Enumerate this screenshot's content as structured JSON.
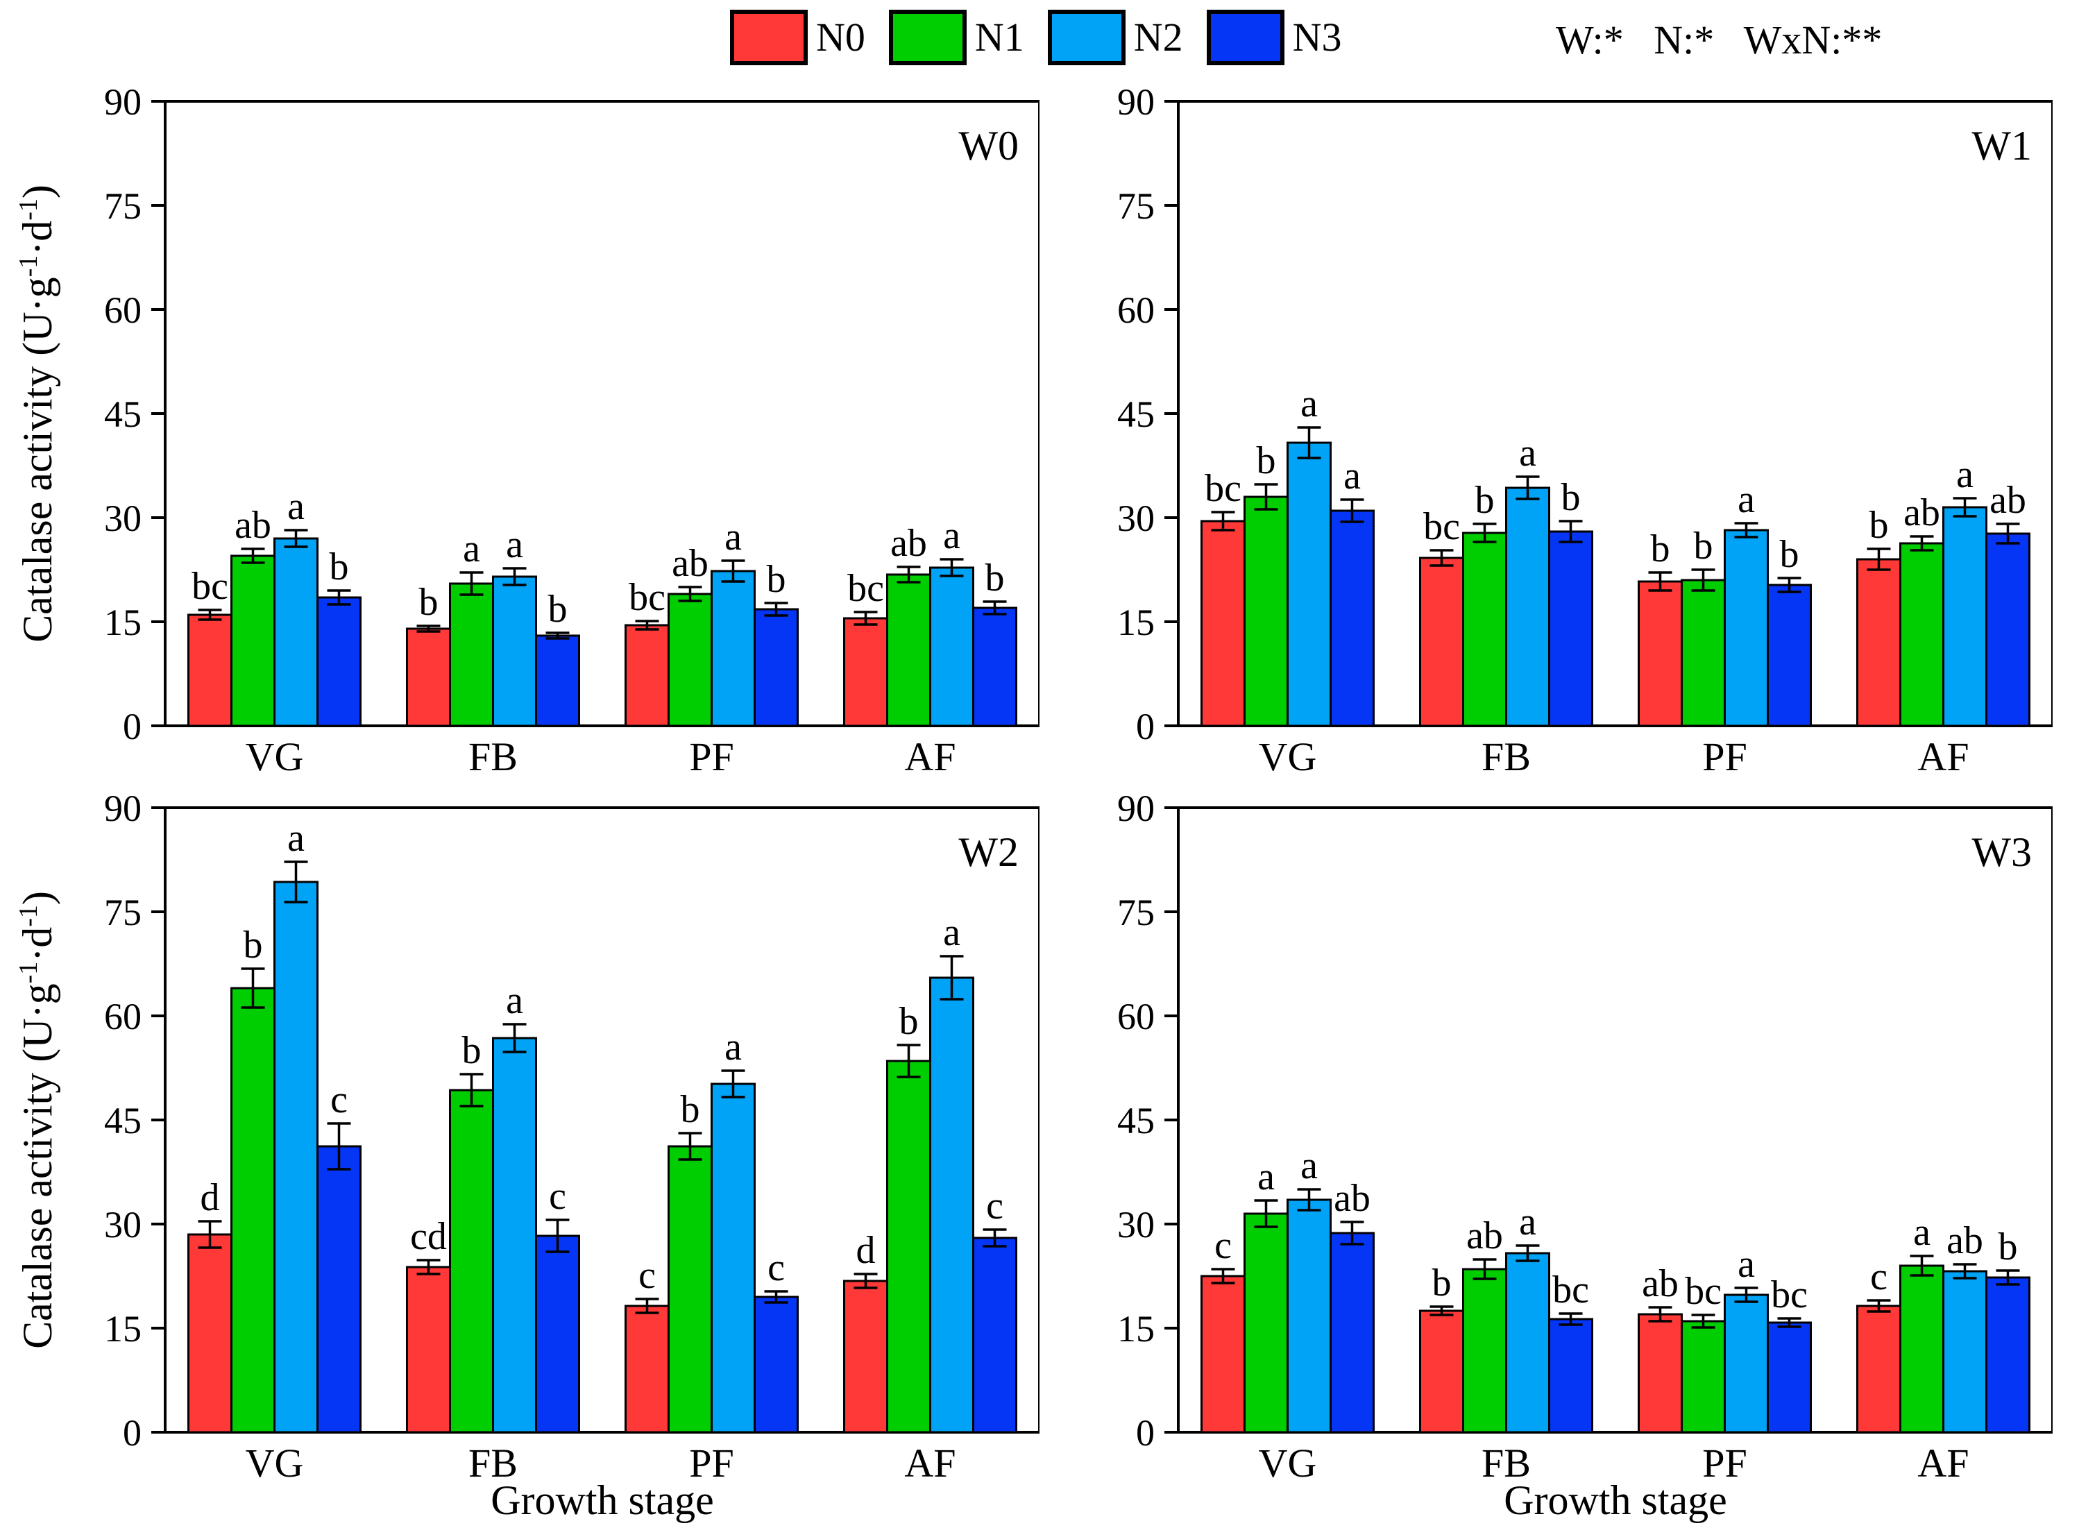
{
  "figure": {
    "ylabel": "Catalase activity (U·g⁻¹·d⁻¹)",
    "ylabel_parts": {
      "p1": "Catalase activity (U·g",
      "s1": "-1",
      "p2": "·d",
      "s2": "-1",
      "p3": ")"
    },
    "xlabel": "Growth stage",
    "stats": "W:*   N:*   WxN:**"
  },
  "legend": {
    "items": [
      {
        "label": "N0",
        "color": "#FF3838"
      },
      {
        "label": "N1",
        "color": "#00CE00"
      },
      {
        "label": "N2",
        "color": "#00A3F5"
      },
      {
        "label": "N3",
        "color": "#0536F5"
      }
    ]
  },
  "chart_data": [
    {
      "type": "bar",
      "panel": "W0",
      "categories": [
        "VG",
        "FB",
        "PF",
        "AF"
      ],
      "ylim": [
        0,
        90
      ],
      "yticks": [
        0,
        15,
        30,
        45,
        60,
        75,
        90
      ],
      "series": [
        {
          "name": "N0",
          "color": "#FF3838",
          "values": [
            16.0,
            14.0,
            14.5,
            15.5
          ],
          "errors": [
            0.7,
            0.4,
            0.6,
            0.9
          ],
          "letters": [
            "bc",
            "b",
            "bc",
            "bc"
          ]
        },
        {
          "name": "N1",
          "color": "#00CE00",
          "values": [
            24.5,
            20.5,
            19.0,
            21.8
          ],
          "errors": [
            1.0,
            1.6,
            1.0,
            1.1
          ],
          "letters": [
            "ab",
            "a",
            "ab",
            "ab"
          ]
        },
        {
          "name": "N2",
          "color": "#00A3F5",
          "values": [
            27.0,
            21.5,
            22.3,
            22.8
          ],
          "errors": [
            1.2,
            1.2,
            1.5,
            1.2
          ],
          "letters": [
            "a",
            "a",
            "a",
            "a"
          ]
        },
        {
          "name": "N3",
          "color": "#0536F5",
          "values": [
            18.5,
            13.0,
            16.8,
            17.0
          ],
          "errors": [
            1.0,
            0.4,
            0.9,
            0.9
          ],
          "letters": [
            "b",
            "b",
            "b",
            "b"
          ]
        }
      ]
    },
    {
      "type": "bar",
      "panel": "W1",
      "categories": [
        "VG",
        "FB",
        "PF",
        "AF"
      ],
      "ylim": [
        0,
        90
      ],
      "yticks": [
        0,
        15,
        30,
        45,
        60,
        75,
        90
      ],
      "series": [
        {
          "name": "N0",
          "color": "#FF3838",
          "values": [
            29.5,
            24.2,
            20.8,
            24.0
          ],
          "errors": [
            1.3,
            1.1,
            1.3,
            1.5
          ],
          "letters": [
            "bc",
            "bc",
            "b",
            "b"
          ]
        },
        {
          "name": "N1",
          "color": "#00CE00",
          "values": [
            33.0,
            27.8,
            21.0,
            26.3
          ],
          "errors": [
            1.8,
            1.3,
            1.5,
            1.0
          ],
          "letters": [
            "b",
            "b",
            "b",
            "ab"
          ]
        },
        {
          "name": "N2",
          "color": "#00A3F5",
          "values": [
            40.8,
            34.3,
            28.2,
            31.5
          ],
          "errors": [
            2.2,
            1.6,
            1.0,
            1.3
          ],
          "letters": [
            "a",
            "a",
            "a",
            "a"
          ]
        },
        {
          "name": "N3",
          "color": "#0536F5",
          "values": [
            31.0,
            28.0,
            20.3,
            27.7
          ],
          "errors": [
            1.6,
            1.5,
            1.0,
            1.4
          ],
          "letters": [
            "a",
            "b",
            "b",
            "ab"
          ]
        }
      ]
    },
    {
      "type": "bar",
      "panel": "W2",
      "categories": [
        "VG",
        "FB",
        "PF",
        "AF"
      ],
      "ylim": [
        0,
        90
      ],
      "yticks": [
        0,
        15,
        30,
        45,
        60,
        75,
        90
      ],
      "series": [
        {
          "name": "N0",
          "color": "#FF3838",
          "values": [
            28.5,
            23.8,
            18.2,
            21.8
          ],
          "errors": [
            1.9,
            1.0,
            1.0,
            1.0
          ],
          "letters": [
            "d",
            "cd",
            "c",
            "d"
          ]
        },
        {
          "name": "N1",
          "color": "#00CE00",
          "values": [
            64.0,
            49.3,
            41.2,
            53.5
          ],
          "errors": [
            2.8,
            2.3,
            1.9,
            2.3
          ],
          "letters": [
            "b",
            "b",
            "b",
            "b"
          ]
        },
        {
          "name": "N2",
          "color": "#00A3F5",
          "values": [
            79.3,
            56.8,
            50.2,
            65.5
          ],
          "errors": [
            2.9,
            2.0,
            1.9,
            3.1
          ],
          "letters": [
            "a",
            "a",
            "a",
            "a"
          ]
        },
        {
          "name": "N3",
          "color": "#0536F5",
          "values": [
            41.2,
            28.3,
            19.5,
            28.0
          ],
          "errors": [
            3.3,
            2.3,
            0.8,
            1.2
          ],
          "letters": [
            "c",
            "c",
            "c",
            "c"
          ]
        }
      ]
    },
    {
      "type": "bar",
      "panel": "W3",
      "categories": [
        "VG",
        "FB",
        "PF",
        "AF"
      ],
      "ylim": [
        0,
        90
      ],
      "yticks": [
        0,
        15,
        30,
        45,
        60,
        75,
        90
      ],
      "series": [
        {
          "name": "N0",
          "color": "#FF3838",
          "values": [
            22.5,
            17.5,
            17.0,
            18.2
          ],
          "errors": [
            1.0,
            0.6,
            1.0,
            0.8
          ],
          "letters": [
            "c",
            "b",
            "ab",
            "c"
          ]
        },
        {
          "name": "N1",
          "color": "#00CE00",
          "values": [
            31.5,
            23.5,
            16.0,
            24.0
          ],
          "errors": [
            1.9,
            1.4,
            0.9,
            1.4
          ],
          "letters": [
            "a",
            "ab",
            "bc",
            "a"
          ]
        },
        {
          "name": "N2",
          "color": "#00A3F5",
          "values": [
            33.5,
            25.8,
            19.8,
            23.2
          ],
          "errors": [
            1.5,
            1.1,
            1.0,
            1.0
          ],
          "letters": [
            "a",
            "a",
            "a",
            "ab"
          ]
        },
        {
          "name": "N3",
          "color": "#0536F5",
          "values": [
            28.7,
            16.3,
            15.8,
            22.3
          ],
          "errors": [
            1.6,
            0.8,
            0.6,
            1.0
          ],
          "letters": [
            "ab",
            "bc",
            "bc",
            "b"
          ]
        }
      ]
    }
  ]
}
